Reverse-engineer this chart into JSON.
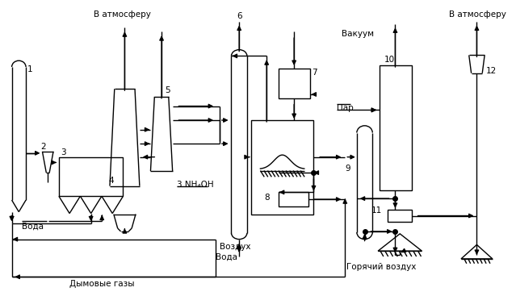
{
  "bg_color": "#ffffff",
  "atm1": "В атмосферу",
  "atm2": "В атмосферу",
  "vakuum": "Вакуум",
  "par": "Пар",
  "nh4oh": "3 NH₄OH",
  "voda1": "Вода",
  "voda2": "Вода",
  "vozduh": "Воздух",
  "goryachiy": "Горячий воздух",
  "dymovye": "Дымовые газы",
  "figsize": [
    6.39,
    3.67
  ],
  "dpi": 100
}
